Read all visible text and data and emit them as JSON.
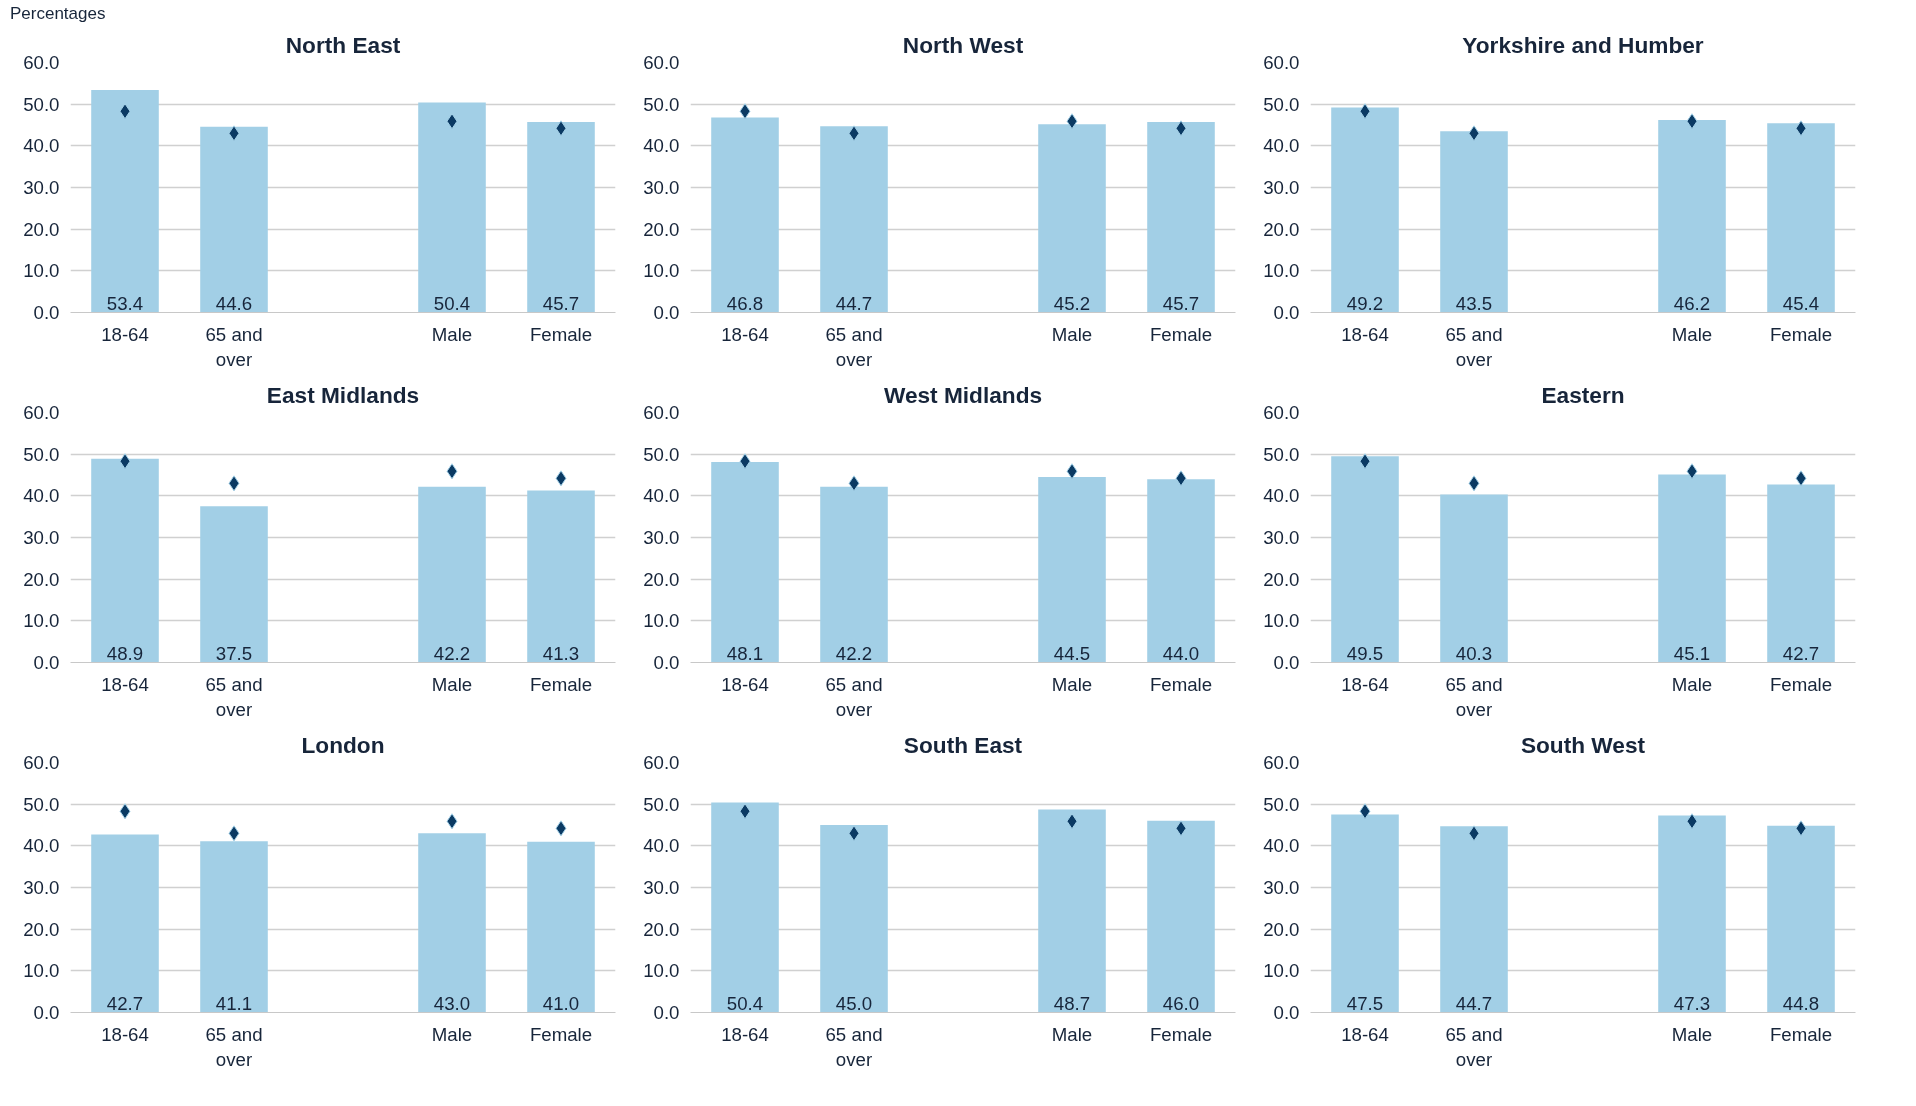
{
  "chart_data": [
    {
      "type": "bar",
      "title": "North East",
      "annotations": [
        "Percentages"
      ],
      "categories": [
        "18-64",
        "65 and over",
        null,
        "Male",
        "Female"
      ],
      "ylim": [
        0,
        60
      ],
      "yticks": [
        {
          "value": 0,
          "label": "0.0"
        },
        {
          "value": 10,
          "label": "10.0"
        },
        {
          "value": 20,
          "label": "20.0"
        },
        {
          "value": 30,
          "label": "30.0"
        },
        {
          "value": 40,
          "label": "40.0"
        },
        {
          "value": 50,
          "label": "50.0"
        },
        {
          "value": 60,
          "label": "60.0"
        }
      ],
      "grid": "y",
      "series": [
        {
          "type": "bar",
          "color": "#a2cfe6",
          "values": [
            53.4,
            44.6,
            null,
            50.4,
            45.7
          ],
          "value_labels": [
            "53.4",
            "44.6",
            null,
            "50.4",
            "45.7"
          ]
        },
        {
          "type": "scatter",
          "marker": "diamond",
          "color": "#0b3a63",
          "values": [
            48.3,
            43.0,
            null,
            45.9,
            44.2
          ]
        }
      ]
    },
    {
      "type": "bar",
      "title": "North West",
      "categories": [
        "18-64",
        "65 and over",
        null,
        "Male",
        "Female"
      ],
      "ylim": [
        0,
        60
      ],
      "yticks": [
        {
          "value": 0,
          "label": "0.0"
        },
        {
          "value": 10,
          "label": "10.0"
        },
        {
          "value": 20,
          "label": "20.0"
        },
        {
          "value": 30,
          "label": "30.0"
        },
        {
          "value": 40,
          "label": "40.0"
        },
        {
          "value": 50,
          "label": "50.0"
        },
        {
          "value": 60,
          "label": "60.0"
        }
      ],
      "grid": "y",
      "series": [
        {
          "type": "bar",
          "color": "#a2cfe6",
          "values": [
            46.8,
            44.7,
            null,
            45.2,
            45.7
          ],
          "value_labels": [
            "46.8",
            "44.7",
            null,
            "45.2",
            "45.7"
          ]
        },
        {
          "type": "scatter",
          "marker": "diamond",
          "color": "#0b3a63",
          "values": [
            48.3,
            43.0,
            null,
            45.9,
            44.2
          ]
        }
      ]
    },
    {
      "type": "bar",
      "title": "Yorkshire and Humber",
      "categories": [
        "18-64",
        "65 and over",
        null,
        "Male",
        "Female"
      ],
      "ylim": [
        0,
        60
      ],
      "yticks": [
        {
          "value": 0,
          "label": "0.0"
        },
        {
          "value": 10,
          "label": "10.0"
        },
        {
          "value": 20,
          "label": "20.0"
        },
        {
          "value": 30,
          "label": "30.0"
        },
        {
          "value": 40,
          "label": "40.0"
        },
        {
          "value": 50,
          "label": "50.0"
        },
        {
          "value": 60,
          "label": "60.0"
        }
      ],
      "grid": "y",
      "series": [
        {
          "type": "bar",
          "color": "#a2cfe6",
          "values": [
            49.2,
            43.5,
            null,
            46.2,
            45.4
          ],
          "value_labels": [
            "49.2",
            "43.5",
            null,
            "46.2",
            "45.4"
          ]
        },
        {
          "type": "scatter",
          "marker": "diamond",
          "color": "#0b3a63",
          "values": [
            48.3,
            43.0,
            null,
            45.9,
            44.2
          ]
        }
      ]
    },
    {
      "type": "bar",
      "title": "East Midlands",
      "categories": [
        "18-64",
        "65 and over",
        null,
        "Male",
        "Female"
      ],
      "ylim": [
        0,
        60
      ],
      "yticks": [
        {
          "value": 0,
          "label": "0.0"
        },
        {
          "value": 10,
          "label": "10.0"
        },
        {
          "value": 20,
          "label": "20.0"
        },
        {
          "value": 30,
          "label": "30.0"
        },
        {
          "value": 40,
          "label": "40.0"
        },
        {
          "value": 50,
          "label": "50.0"
        },
        {
          "value": 60,
          "label": "60.0"
        }
      ],
      "grid": "y",
      "series": [
        {
          "type": "bar",
          "color": "#a2cfe6",
          "values": [
            48.9,
            37.5,
            null,
            42.2,
            41.3
          ],
          "value_labels": [
            "48.9",
            "37.5",
            null,
            "42.2",
            "41.3"
          ]
        },
        {
          "type": "scatter",
          "marker": "diamond",
          "color": "#0b3a63",
          "values": [
            48.3,
            43.0,
            null,
            45.9,
            44.2
          ]
        }
      ]
    },
    {
      "type": "bar",
      "title": "West Midlands",
      "categories": [
        "18-64",
        "65 and over",
        null,
        "Male",
        "Female"
      ],
      "ylim": [
        0,
        60
      ],
      "yticks": [
        {
          "value": 0,
          "label": "0.0"
        },
        {
          "value": 10,
          "label": "10.0"
        },
        {
          "value": 20,
          "label": "20.0"
        },
        {
          "value": 30,
          "label": "30.0"
        },
        {
          "value": 40,
          "label": "40.0"
        },
        {
          "value": 50,
          "label": "50.0"
        },
        {
          "value": 60,
          "label": "60.0"
        }
      ],
      "grid": "y",
      "series": [
        {
          "type": "bar",
          "color": "#a2cfe6",
          "values": [
            48.1,
            42.2,
            null,
            44.5,
            44.0
          ],
          "value_labels": [
            "48.1",
            "42.2",
            null,
            "44.5",
            "44.0"
          ]
        },
        {
          "type": "scatter",
          "marker": "diamond",
          "color": "#0b3a63",
          "values": [
            48.3,
            43.0,
            null,
            45.9,
            44.2
          ]
        }
      ]
    },
    {
      "type": "bar",
      "title": "Eastern",
      "categories": [
        "18-64",
        "65 and over",
        null,
        "Male",
        "Female"
      ],
      "ylim": [
        0,
        60
      ],
      "yticks": [
        {
          "value": 0,
          "label": "0.0"
        },
        {
          "value": 10,
          "label": "10.0"
        },
        {
          "value": 20,
          "label": "20.0"
        },
        {
          "value": 30,
          "label": "30.0"
        },
        {
          "value": 40,
          "label": "40.0"
        },
        {
          "value": 50,
          "label": "50.0"
        },
        {
          "value": 60,
          "label": "60.0"
        }
      ],
      "grid": "y",
      "series": [
        {
          "type": "bar",
          "color": "#a2cfe6",
          "values": [
            49.5,
            40.3,
            null,
            45.1,
            42.7
          ],
          "value_labels": [
            "49.5",
            "40.3",
            null,
            "45.1",
            "42.7"
          ]
        },
        {
          "type": "scatter",
          "marker": "diamond",
          "color": "#0b3a63",
          "values": [
            48.3,
            43.0,
            null,
            45.9,
            44.2
          ]
        }
      ]
    },
    {
      "type": "bar",
      "title": "London",
      "categories": [
        "18-64",
        "65 and over",
        null,
        "Male",
        "Female"
      ],
      "ylim": [
        0,
        60
      ],
      "yticks": [
        {
          "value": 0,
          "label": "0.0"
        },
        {
          "value": 10,
          "label": "10.0"
        },
        {
          "value": 20,
          "label": "20.0"
        },
        {
          "value": 30,
          "label": "30.0"
        },
        {
          "value": 40,
          "label": "40.0"
        },
        {
          "value": 50,
          "label": "50.0"
        },
        {
          "value": 60,
          "label": "60.0"
        }
      ],
      "grid": "y",
      "series": [
        {
          "type": "bar",
          "color": "#a2cfe6",
          "values": [
            42.7,
            41.1,
            null,
            43.0,
            41.0
          ],
          "value_labels": [
            "42.7",
            "41.1",
            null,
            "43.0",
            "41.0"
          ]
        },
        {
          "type": "scatter",
          "marker": "diamond",
          "color": "#0b3a63",
          "values": [
            48.3,
            43.0,
            null,
            45.9,
            44.2
          ]
        }
      ]
    },
    {
      "type": "bar",
      "title": "South East",
      "categories": [
        "18-64",
        "65 and over",
        null,
        "Male",
        "Female"
      ],
      "ylim": [
        0,
        60
      ],
      "yticks": [
        {
          "value": 0,
          "label": "0.0"
        },
        {
          "value": 10,
          "label": "10.0"
        },
        {
          "value": 20,
          "label": "20.0"
        },
        {
          "value": 30,
          "label": "30.0"
        },
        {
          "value": 40,
          "label": "40.0"
        },
        {
          "value": 50,
          "label": "50.0"
        },
        {
          "value": 60,
          "label": "60.0"
        }
      ],
      "grid": "y",
      "series": [
        {
          "type": "bar",
          "color": "#a2cfe6",
          "values": [
            50.4,
            45.0,
            null,
            48.7,
            46.0
          ],
          "value_labels": [
            "50.4",
            "45.0",
            null,
            "48.7",
            "46.0"
          ]
        },
        {
          "type": "scatter",
          "marker": "diamond",
          "color": "#0b3a63",
          "values": [
            48.3,
            43.0,
            null,
            45.9,
            44.2
          ]
        }
      ]
    },
    {
      "type": "bar",
      "title": "South West",
      "categories": [
        "18-64",
        "65 and over",
        null,
        "Male",
        "Female"
      ],
      "ylim": [
        0,
        60
      ],
      "yticks": [
        {
          "value": 0,
          "label": "0.0"
        },
        {
          "value": 10,
          "label": "10.0"
        },
        {
          "value": 20,
          "label": "20.0"
        },
        {
          "value": 30,
          "label": "30.0"
        },
        {
          "value": 40,
          "label": "40.0"
        },
        {
          "value": 50,
          "label": "50.0"
        },
        {
          "value": 60,
          "label": "60.0"
        }
      ],
      "grid": "y",
      "series": [
        {
          "type": "bar",
          "color": "#a2cfe6",
          "values": [
            47.5,
            44.7,
            null,
            47.3,
            44.8
          ],
          "value_labels": [
            "47.5",
            "44.7",
            null,
            "47.3",
            "44.8"
          ]
        },
        {
          "type": "scatter",
          "marker": "diamond",
          "color": "#0b3a63",
          "values": [
            48.3,
            43.0,
            null,
            45.9,
            44.2
          ]
        }
      ]
    }
  ]
}
